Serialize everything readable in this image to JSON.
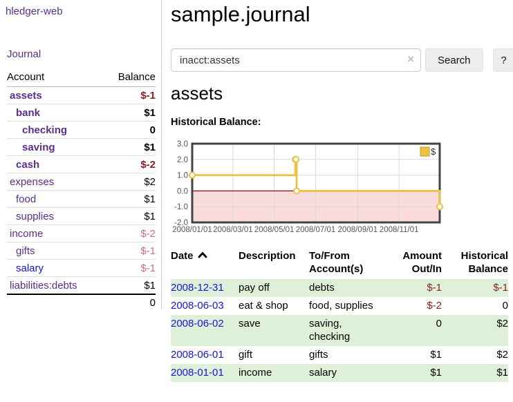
{
  "colors": {
    "link_visited_purple": "#5b2d91",
    "link_blue": "#1414e6",
    "negative": "#8b1e28",
    "negative_muted": "#c4737e",
    "row_green": "#dff0d8",
    "series_gold": "#edc240",
    "negative_region_pink": "#fbdcdc",
    "zero_line_red": "#990000",
    "chart_border": "#434343",
    "grid_gray": "#d9d9d9"
  },
  "sidebar": {
    "brand": "hledger-web",
    "journal_link": "Journal",
    "accounts_table": {
      "headers": [
        "Account",
        "Balance"
      ],
      "rows": [
        {
          "account": "assets",
          "depth": 1,
          "balance": "$-1",
          "bold": true,
          "neg": true,
          "link": "visited"
        },
        {
          "account": "bank",
          "depth": 2,
          "balance": "$1",
          "bold": true,
          "neg": false,
          "link": "visited"
        },
        {
          "account": "checking",
          "depth": 3,
          "balance": "0",
          "bold": true,
          "neg": false,
          "link": "visited"
        },
        {
          "account": "saving",
          "depth": 3,
          "balance": "$1",
          "bold": true,
          "neg": false,
          "link": "visited"
        },
        {
          "account": "cash",
          "depth": 2,
          "balance": "$-2",
          "bold": true,
          "neg": true,
          "link": "visited"
        },
        {
          "account": "expenses",
          "depth": 1,
          "balance": "$2",
          "bold": false,
          "neg": false,
          "link": "visited"
        },
        {
          "account": "food",
          "depth": 2,
          "balance": "$1",
          "bold": false,
          "neg": false,
          "link": "visited"
        },
        {
          "account": "supplies",
          "depth": 2,
          "balance": "$1",
          "bold": false,
          "neg": false,
          "link": "visited"
        },
        {
          "account": "income",
          "depth": 1,
          "balance": "$-2",
          "bold": false,
          "neg": true,
          "link": "visited"
        },
        {
          "account": "gifts",
          "depth": 2,
          "balance": "$-1",
          "bold": false,
          "neg": true,
          "link": "visited"
        },
        {
          "account": "salary",
          "depth": 2,
          "balance": "$-1",
          "bold": false,
          "neg": true,
          "link": "unvisited"
        },
        {
          "account": "liabilities:debts",
          "depth": 1,
          "balance": "$1",
          "bold": false,
          "neg": false,
          "link": "visited"
        }
      ],
      "total": "0"
    }
  },
  "header": {
    "title": "sample.journal"
  },
  "search": {
    "value": "inacct:assets",
    "clear_icon": "×",
    "button_label": "Search",
    "help_label": "?"
  },
  "account_page": {
    "title": "assets",
    "chart_heading": "Historical Balance:"
  },
  "chart_data": {
    "type": "line",
    "subtype": "step",
    "title": "Historical Balance",
    "series": [
      {
        "name": "$",
        "color": "#edc240",
        "points": [
          {
            "date": "2008-01-01",
            "value": 1
          },
          {
            "date": "2008-06-01",
            "value": 2
          },
          {
            "date": "2008-06-02",
            "value": 2
          },
          {
            "date": "2008-06-03",
            "value": 0
          },
          {
            "date": "2008-12-31",
            "value": -1
          }
        ]
      }
    ],
    "xlim": [
      "2008-01-01",
      "2008-12-31"
    ],
    "ylim": [
      -2,
      3
    ],
    "y_ticks": [
      3.0,
      2.0,
      1.0,
      0.0,
      -1.0,
      -2.0
    ],
    "x_ticks": [
      "2008/01/01",
      "2008/03/01",
      "2008/05/01",
      "2008/07/01",
      "2008/09/01",
      "2008/11/01"
    ],
    "grid": true,
    "legend_position": "top-right",
    "negative_region_fill": "#fbdcdc",
    "zero_line_color": "#990000"
  },
  "register_table": {
    "columns": [
      {
        "line1": "Date",
        "line2": "",
        "sorted": true,
        "align": "left"
      },
      {
        "line1": "Description",
        "line2": "",
        "sorted": false,
        "align": "left"
      },
      {
        "line1": "To/From",
        "line2": "Account(s)",
        "sorted": false,
        "align": "left"
      },
      {
        "line1": "Amount",
        "line2": "Out/In",
        "sorted": false,
        "align": "right"
      },
      {
        "line1": "Historical",
        "line2": "Balance",
        "sorted": false,
        "align": "right"
      }
    ],
    "rows": [
      {
        "date": "2008-12-31",
        "description": "pay off",
        "accounts": "debts",
        "amount": "$-1",
        "balance": "$-1",
        "amount_neg": true,
        "balance_neg": true,
        "green": true
      },
      {
        "date": "2008-06-03",
        "description": "eat & shop",
        "accounts": "food, supplies",
        "amount": "$-2",
        "balance": "0",
        "amount_neg": true,
        "balance_neg": false,
        "green": false
      },
      {
        "date": "2008-06-02",
        "description": "save",
        "accounts": "saving,\nchecking",
        "amount": "0",
        "balance": "$2",
        "amount_neg": false,
        "balance_neg": false,
        "green": true
      },
      {
        "date": "2008-06-01",
        "description": "gift",
        "accounts": "gifts",
        "amount": "$1",
        "balance": "$2",
        "amount_neg": false,
        "balance_neg": false,
        "green": false
      },
      {
        "date": "2008-01-01",
        "description": "income",
        "accounts": "salary",
        "amount": "$1",
        "balance": "$1",
        "amount_neg": false,
        "balance_neg": false,
        "green": true
      }
    ]
  }
}
